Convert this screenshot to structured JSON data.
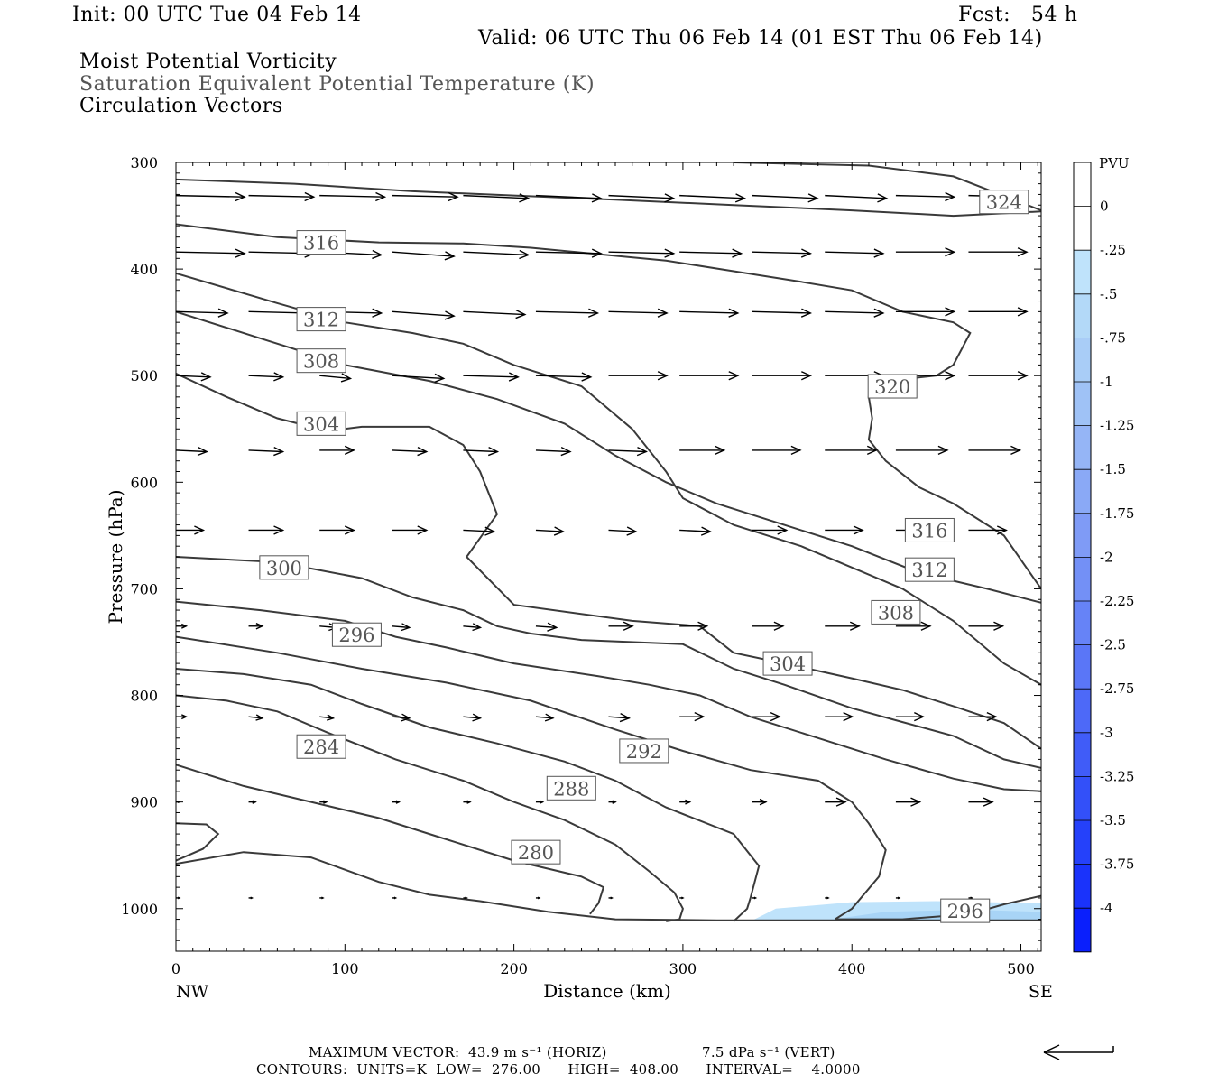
{
  "header": {
    "init": "Init: 00 UTC Tue 04 Feb 14",
    "fcst": "Fcst:   54 h",
    "valid": "Valid: 06 UTC Thu 06 Feb 14 (01 EST Thu 06 Feb 14)",
    "title1": "Moist Potential Vorticity",
    "title2": "Saturation Equivalent Potential Temperature (K)",
    "title3": "Circulation Vectors"
  },
  "footer": {
    "max_vector_label": "MAXIMUM VECTOR:",
    "max_horiz": "43.9 m s⁻¹ (HORIZ)",
    "max_vert": "7.5 dPa s⁻¹ (VERT)",
    "contours": "CONTOURS:  UNITS=K  LOW=  276.00      HIGH=  408.00      INTERVAL=    4.0000"
  },
  "colors": {
    "contour": "#3a3a3a",
    "pv_shade_light": "#bfe3fb",
    "pv_shade_mid": "#a8d4f6"
  },
  "chart_data": {
    "type": "cross-section",
    "xlabel": "Distance (km)",
    "ylabel": "Pressure (hPa)",
    "x_end_labels": [
      "NW",
      "SE"
    ],
    "xlim": [
      0,
      512
    ],
    "ylim": [
      1040,
      300
    ],
    "x_ticks": [
      0,
      100,
      200,
      300,
      400,
      500
    ],
    "y_ticks": [
      300,
      400,
      500,
      600,
      700,
      800,
      900,
      1000
    ],
    "colorbar": {
      "unit": "PVU",
      "levels": [
        "0",
        "-.25",
        "-.5",
        "-.75",
        "-1",
        "-1.25",
        "-1.5",
        "-1.75",
        "-2",
        "-2.25",
        "-2.5",
        "-2.75",
        "-3",
        "-3.25",
        "-3.5",
        "-3.75",
        "-4"
      ],
      "colors": [
        "#ffffff",
        "#ffffff",
        "#bfe3fb",
        "#b3d9f8",
        "#a9cdf7",
        "#9fc2f6",
        "#95b5f6",
        "#8aa9f6",
        "#7f9bf6",
        "#7390f6",
        "#6683f7",
        "#5a76f7",
        "#4d69f8",
        "#405cf8",
        "#3350f9",
        "#2541fa",
        "#1a33fb",
        "#0a1ffc"
      ]
    },
    "contour_labels": [
      {
        "value": "324",
        "x": 490,
        "p": 337
      },
      {
        "value": "316",
        "x": 86,
        "p": 375
      },
      {
        "value": "312",
        "x": 86,
        "p": 447
      },
      {
        "value": "308",
        "x": 86,
        "p": 486
      },
      {
        "value": "304",
        "x": 86,
        "p": 545
      },
      {
        "value": "320",
        "x": 424,
        "p": 510
      },
      {
        "value": "316",
        "x": 446,
        "p": 645
      },
      {
        "value": "312",
        "x": 446,
        "p": 682
      },
      {
        "value": "300",
        "x": 64,
        "p": 680
      },
      {
        "value": "308",
        "x": 426,
        "p": 722
      },
      {
        "value": "296",
        "x": 107,
        "p": 743
      },
      {
        "value": "304",
        "x": 362,
        "p": 770
      },
      {
        "value": "284",
        "x": 86,
        "p": 848
      },
      {
        "value": "292",
        "x": 277,
        "p": 852
      },
      {
        "value": "288",
        "x": 234,
        "p": 887
      },
      {
        "value": "280",
        "x": 213,
        "p": 947
      },
      {
        "value": "296",
        "x": 467,
        "p": 1002
      }
    ],
    "contours": [
      {
        "x": [
          0,
          70,
          140,
          200,
          260,
          330,
          400,
          460,
          512
        ],
        "p": [
          316,
          320,
          327,
          331,
          335,
          340,
          345,
          350,
          346
        ]
      },
      {
        "x": [
          330,
          410,
          460,
          512
        ],
        "p": [
          300,
          303,
          313,
          345
        ]
      },
      {
        "x": [
          0,
          60,
          120,
          170,
          210,
          250,
          290,
          330,
          370,
          400,
          430,
          460,
          470,
          460,
          450,
          420,
          410,
          412,
          410,
          420,
          440,
          460,
          490,
          512
        ],
        "p": [
          358,
          370,
          375,
          376,
          380,
          386,
          392,
          402,
          412,
          420,
          440,
          450,
          460,
          490,
          500,
          505,
          520,
          540,
          560,
          580,
          605,
          620,
          650,
          700
        ]
      },
      {
        "x": [
          0,
          60,
          100,
          140,
          170,
          200,
          240,
          270,
          290,
          300,
          330,
          370,
          400,
          430,
          460,
          490,
          512
        ],
        "p": [
          404,
          432,
          450,
          460,
          470,
          490,
          510,
          550,
          590,
          615,
          640,
          660,
          680,
          700,
          730,
          770,
          790
        ]
      },
      {
        "x": [
          0,
          50,
          100,
          150,
          190,
          230,
          260,
          290,
          320,
          360,
          400,
          440,
          480,
          512
        ],
        "p": [
          440,
          465,
          490,
          505,
          522,
          545,
          575,
          600,
          620,
          640,
          660,
          685,
          700,
          713
        ]
      },
      {
        "x": [
          0,
          30,
          60,
          90,
          110,
          150,
          170,
          180,
          190,
          172,
          200,
          270,
          310,
          330,
          360,
          400,
          430,
          460,
          490,
          512
        ],
        "p": [
          498,
          520,
          540,
          552,
          548,
          548,
          565,
          590,
          630,
          670,
          715,
          730,
          735,
          760,
          770,
          784,
          795,
          810,
          826,
          850
        ]
      },
      {
        "x": [
          0,
          60,
          110,
          140,
          170,
          190,
          210,
          240,
          300,
          330,
          360,
          400,
          430,
          460,
          490,
          512
        ],
        "p": [
          670,
          675,
          690,
          708,
          720,
          735,
          742,
          748,
          752,
          775,
          790,
          812,
          825,
          838,
          860,
          868
        ]
      },
      {
        "x": [
          0,
          50,
          100,
          130,
          160,
          200,
          250,
          280,
          310,
          340,
          380,
          420,
          460,
          490,
          512
        ],
        "p": [
          712,
          720,
          730,
          745,
          755,
          770,
          782,
          790,
          800,
          820,
          840,
          860,
          878,
          888,
          890
        ]
      },
      {
        "x": [
          0,
          60,
          110,
          160,
          210,
          260,
          300,
          340,
          380,
          400,
          410,
          420,
          416,
          400,
          390
        ],
        "p": [
          745,
          760,
          775,
          788,
          805,
          832,
          852,
          870,
          880,
          900,
          920,
          945,
          970,
          1000,
          1010
        ]
      },
      {
        "x": [
          0,
          40,
          80,
          110,
          150,
          190,
          230,
          260,
          290,
          330,
          345,
          340,
          338,
          330
        ],
        "p": [
          775,
          780,
          790,
          808,
          830,
          845,
          862,
          880,
          905,
          930,
          960,
          990,
          1000,
          1012
        ]
      },
      {
        "x": [
          0,
          30,
          60,
          90,
          130,
          170,
          200,
          230,
          260,
          280,
          295,
          300,
          298,
          290
        ],
        "p": [
          800,
          805,
          815,
          835,
          860,
          880,
          900,
          917,
          940,
          965,
          985,
          1000,
          1010,
          1012
        ]
      },
      {
        "x": [
          0,
          40,
          80,
          120,
          160,
          200,
          240,
          253,
          250,
          245
        ],
        "p": [
          865,
          885,
          900,
          915,
          935,
          955,
          970,
          980,
          995,
          1005
        ]
      },
      {
        "x": [
          0,
          40,
          80,
          120,
          150,
          180,
          220,
          260,
          320,
          400,
          512
        ],
        "p": [
          958,
          947,
          952,
          975,
          987,
          993,
          1003,
          1010,
          1011,
          1011,
          1011
        ]
      },
      {
        "x": [
          0,
          18,
          25,
          16,
          0
        ],
        "p": [
          920,
          921,
          930,
          944,
          955
        ]
      },
      {
        "x": [
          390,
          430,
          470,
          490,
          512
        ],
        "p": [
          1010,
          1010,
          1005,
          996,
          988
        ]
      }
    ],
    "vectors": [
      {
        "rows": [
          {
            "p": 331,
            "x": [
              0,
              43,
              85,
              128,
              170,
              213,
              256,
              298,
              341,
              384,
              426,
              469
            ],
            "u": [
              40,
              38,
              38,
              38,
              38,
              38,
              38,
              38,
              38,
              36,
              34,
              34
            ],
            "w": [
              -1,
              -1,
              -1,
              -1,
              -2,
              -2,
              -2,
              -2,
              -2,
              -2,
              -1,
              -1
            ]
          }
        ]
      },
      {
        "rows": [
          {
            "p": 384,
            "x": [
              0,
              43,
              85,
              128,
              170,
              213,
              256,
              298,
              341,
              384,
              426,
              469
            ],
            "u": [
              40,
              38,
              36,
              36,
              38,
              38,
              38,
              36,
              34,
              34,
              34,
              34
            ],
            "w": [
              -1,
              -1,
              -2,
              -3,
              -2,
              -1,
              -1,
              -1,
              -1,
              -1,
              0,
              0
            ]
          }
        ]
      },
      {
        "rows": [
          {
            "p": 440,
            "x": [
              0,
              43,
              85,
              128,
              170,
              213,
              256,
              298,
              341,
              384,
              426,
              469
            ],
            "u": [
              30,
              34,
              36,
              36,
              36,
              36,
              34,
              34,
              34,
              34,
              34,
              34
            ],
            "w": [
              -1,
              -1,
              -1,
              -3,
              -2,
              -1,
              -1,
              -1,
              -1,
              -1,
              0,
              0
            ]
          }
        ]
      },
      {
        "rows": [
          {
            "p": 500,
            "x": [
              0,
              43,
              85,
              128,
              170,
              213,
              256,
              298,
              341,
              384,
              426,
              469
            ],
            "u": [
              20,
              20,
              18,
              30,
              32,
              32,
              34,
              34,
              34,
              34,
              34,
              34
            ],
            "w": [
              -1,
              -1,
              -2,
              -2,
              -1,
              -1,
              0,
              0,
              0,
              0,
              0,
              0
            ]
          }
        ]
      },
      {
        "rows": [
          {
            "p": 570,
            "x": [
              0,
              43,
              85,
              128,
              170,
              213,
              256,
              298,
              341,
              384,
              426,
              469
            ],
            "u": [
              18,
              20,
              20,
              20,
              20,
              20,
              22,
              26,
              28,
              30,
              30,
              30
            ],
            "w": [
              -1,
              -1,
              0,
              -1,
              -1,
              -1,
              -1,
              0,
              0,
              0,
              0,
              0
            ]
          }
        ]
      },
      {
        "rows": [
          {
            "p": 645,
            "x": [
              0,
              43,
              85,
              128,
              170,
              213,
              256,
              298,
              341,
              384,
              426,
              469
            ],
            "u": [
              16,
              20,
              20,
              20,
              18,
              16,
              16,
              18,
              20,
              22,
              22,
              22
            ],
            "w": [
              0,
              0,
              0,
              0,
              -1,
              -1,
              -1,
              -1,
              0,
              0,
              0,
              0
            ]
          }
        ]
      },
      {
        "rows": [
          {
            "p": 735,
            "x": [
              0,
              43,
              85,
              128,
              170,
              213,
              256,
              298,
              341,
              384,
              426,
              469
            ],
            "u": [
              6,
              8,
              10,
              10,
              10,
              12,
              14,
              16,
              18,
              20,
              20,
              20
            ],
            "w": [
              0,
              0,
              -1,
              -1,
              -1,
              -1,
              0,
              0,
              0,
              0,
              0,
              0
            ]
          }
        ]
      },
      {
        "rows": [
          {
            "p": 820,
            "x": [
              0,
              43,
              85,
              128,
              170,
              213,
              256,
              298,
              341,
              384,
              426,
              469
            ],
            "u": [
              6,
              8,
              8,
              10,
              10,
              10,
              12,
              14,
              16,
              16,
              16,
              16
            ],
            "w": [
              0,
              -1,
              -1,
              -1,
              -1,
              -1,
              -1,
              0,
              0,
              0,
              0,
              0
            ]
          }
        ]
      },
      {
        "rows": [
          {
            "p": 900,
            "x": [
              0,
              43,
              85,
              128,
              170,
              213,
              256,
              298,
              341,
              384,
              426,
              469
            ],
            "u": [
              2,
              4,
              4,
              4,
              4,
              4,
              4,
              6,
              8,
              12,
              14,
              14
            ],
            "w": [
              0,
              0,
              0,
              0,
              0,
              0,
              0,
              0,
              0,
              0,
              0,
              0
            ]
          }
        ]
      },
      {
        "rows": [
          {
            "p": 990,
            "x": [
              0,
              43,
              85,
              128,
              170,
              213,
              256,
              298,
              341,
              384,
              426,
              469
            ],
            "u": [
              2,
              2,
              2,
              2,
              2,
              2,
              2,
              2,
              2,
              2,
              2,
              2
            ],
            "w": [
              0,
              0,
              0,
              0,
              0,
              0,
              0,
              0,
              0,
              0,
              0,
              0
            ]
          }
        ]
      }
    ]
  }
}
